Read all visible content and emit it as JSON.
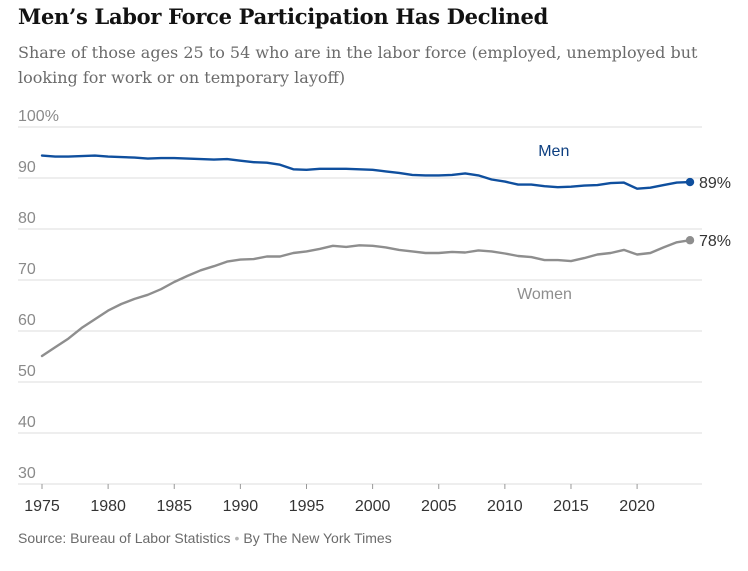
{
  "chart_data": {
    "type": "line",
    "title": "Men’s Labor Force Participation Has Declined",
    "subtitle": "Share of those ages 25 to 54 who are in the labor force (employed, unemployed but looking for work or on temporary layoff)",
    "y_ticks": [
      "100%",
      "90",
      "80",
      "70",
      "60",
      "50",
      "40",
      "30"
    ],
    "y_tick_values": [
      100,
      90,
      80,
      70,
      60,
      50,
      40,
      30
    ],
    "x_ticks": [
      "1975",
      "1980",
      "1985",
      "1990",
      "1995",
      "2000",
      "2005",
      "2010",
      "2015",
      "2020"
    ],
    "x_tick_values": [
      1975,
      1980,
      1985,
      1990,
      1995,
      2000,
      2005,
      2010,
      2015,
      2020
    ],
    "xlim": [
      1975,
      2024
    ],
    "ylim": [
      30,
      100
    ],
    "grid": true,
    "x": [
      1975,
      1976,
      1977,
      1978,
      1979,
      1980,
      1981,
      1982,
      1983,
      1984,
      1985,
      1986,
      1987,
      1988,
      1989,
      1990,
      1991,
      1992,
      1993,
      1994,
      1995,
      1996,
      1997,
      1998,
      1999,
      2000,
      2001,
      2002,
      2003,
      2004,
      2005,
      2006,
      2007,
      2008,
      2009,
      2010,
      2011,
      2012,
      2013,
      2014,
      2015,
      2016,
      2017,
      2018,
      2019,
      2020,
      2021,
      2022,
      2023,
      2024
    ],
    "series": [
      {
        "name": "Men",
        "color": "#0f4f9e",
        "end_label": "89%",
        "values": [
          94.4,
          94.2,
          94.2,
          94.3,
          94.4,
          94.2,
          94.1,
          94.0,
          93.8,
          93.9,
          93.9,
          93.8,
          93.7,
          93.6,
          93.7,
          93.4,
          93.1,
          93.0,
          92.6,
          91.7,
          91.6,
          91.8,
          91.8,
          91.8,
          91.7,
          91.6,
          91.3,
          91.0,
          90.6,
          90.5,
          90.5,
          90.6,
          90.9,
          90.5,
          89.7,
          89.3,
          88.7,
          88.7,
          88.4,
          88.2,
          88.3,
          88.5,
          88.6,
          89.0,
          89.1,
          87.9,
          88.1,
          88.6,
          89.1,
          89.2
        ]
      },
      {
        "name": "Women",
        "color": "#8e8e8e",
        "end_label": "78%",
        "values": [
          55.1,
          56.8,
          58.5,
          60.6,
          62.3,
          64.0,
          65.3,
          66.3,
          67.1,
          68.2,
          69.6,
          70.8,
          71.9,
          72.7,
          73.6,
          74.0,
          74.1,
          74.6,
          74.6,
          75.3,
          75.6,
          76.1,
          76.7,
          76.5,
          76.8,
          76.7,
          76.4,
          75.9,
          75.6,
          75.3,
          75.3,
          75.5,
          75.4,
          75.8,
          75.6,
          75.2,
          74.7,
          74.5,
          73.9,
          73.9,
          73.7,
          74.3,
          75.0,
          75.3,
          75.9,
          75.0,
          75.3,
          76.4,
          77.4,
          77.8
        ]
      }
    ]
  },
  "source": {
    "text": "Source: Bureau of Labor Statistics",
    "separator": "•",
    "byline": "By The New York Times"
  }
}
